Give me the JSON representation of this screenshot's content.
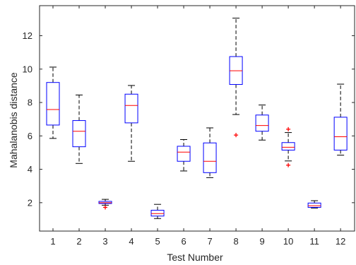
{
  "chart_data": {
    "type": "box",
    "title": "",
    "xlabel": "Test Number",
    "ylabel": "Mahalanobis distance",
    "ylim": [
      0.3,
      13.8
    ],
    "yticks": [
      2,
      4,
      6,
      8,
      10,
      12
    ],
    "grid": false,
    "colors": {
      "box": "#0000ff",
      "median": "#ff0000",
      "whisker": "#000000",
      "outlier": "#ff0000",
      "axis": "#262626"
    },
    "categories": [
      "1",
      "2",
      "3",
      "4",
      "5",
      "6",
      "7",
      "8",
      "9",
      "10",
      "11",
      "12"
    ],
    "boxes": [
      {
        "label": "1",
        "whisker_low": 5.85,
        "q1": 6.65,
        "median": 7.58,
        "q3": 9.2,
        "whisker_high": 10.12,
        "outliers": []
      },
      {
        "label": "2",
        "whisker_low": 4.35,
        "q1": 5.35,
        "median": 6.28,
        "q3": 6.92,
        "whisker_high": 8.45,
        "outliers": []
      },
      {
        "label": "3",
        "whisker_low": 1.85,
        "q1": 1.95,
        "median": 2.0,
        "q3": 2.08,
        "whisker_high": 2.2,
        "outliers": [
          1.72
        ]
      },
      {
        "label": "4",
        "whisker_low": 4.48,
        "q1": 6.78,
        "median": 7.82,
        "q3": 8.5,
        "whisker_high": 9.02,
        "outliers": []
      },
      {
        "label": "5",
        "whisker_low": 1.05,
        "q1": 1.2,
        "median": 1.35,
        "q3": 1.55,
        "whisker_high": 1.9,
        "outliers": []
      },
      {
        "label": "6",
        "whisker_low": 3.9,
        "q1": 4.48,
        "median": 5.03,
        "q3": 5.38,
        "whisker_high": 5.78,
        "outliers": []
      },
      {
        "label": "7",
        "whisker_low": 3.5,
        "q1": 3.8,
        "median": 4.48,
        "q3": 5.58,
        "whisker_high": 6.48,
        "outliers": []
      },
      {
        "label": "8",
        "whisker_low": 7.28,
        "q1": 9.08,
        "median": 9.9,
        "q3": 10.75,
        "whisker_high": 13.05,
        "outliers": [
          6.05
        ]
      },
      {
        "label": "9",
        "whisker_low": 5.75,
        "q1": 6.28,
        "median": 6.62,
        "q3": 7.25,
        "whisker_high": 7.85,
        "outliers": []
      },
      {
        "label": "10",
        "whisker_low": 4.5,
        "q1": 5.15,
        "median": 5.32,
        "q3": 5.6,
        "whisker_high": 6.2,
        "outliers": [
          6.4,
          4.25
        ]
      },
      {
        "label": "11",
        "whisker_low": 1.68,
        "q1": 1.72,
        "median": 1.82,
        "q3": 1.98,
        "whisker_high": 2.12,
        "outliers": []
      },
      {
        "label": "12",
        "whisker_low": 4.85,
        "q1": 5.15,
        "median": 5.95,
        "q3": 7.12,
        "whisker_high": 9.1,
        "outliers": []
      }
    ]
  }
}
